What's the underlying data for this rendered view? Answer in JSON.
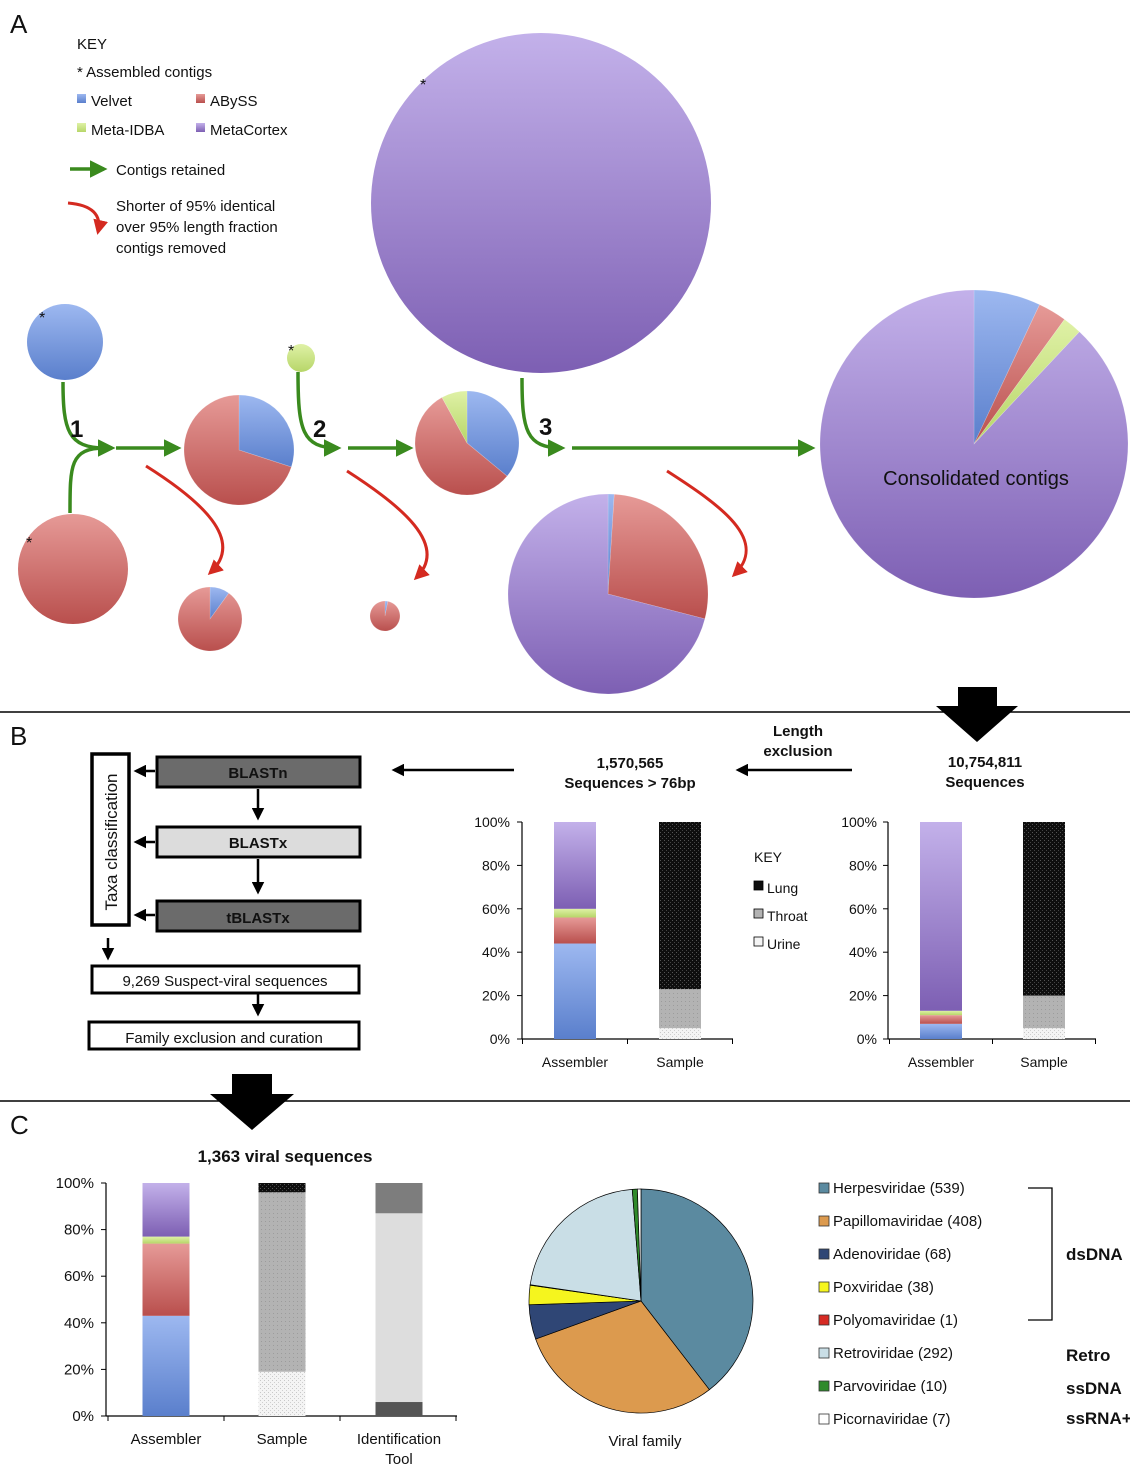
{
  "colors": {
    "velvet": "#6a8fd8",
    "abyss": "#c9605d",
    "metaidba": "#c6e07c",
    "metacortex": "#9478c6",
    "herpes": "#5b8aa0",
    "papilloma": "#dc9a4e",
    "adeno": "#2f4675",
    "pox": "#f5f51e",
    "polyoma": "#d62a23",
    "retro": "#c9dee6",
    "parvo": "#2f8a2b",
    "picorna": "#ffffff",
    "green_arrow": "#3a8a1e",
    "red_arrow": "#d42a20"
  },
  "panelA": {
    "letter": "A",
    "key": {
      "title": "KEY",
      "assembled": "* Assembled contigs",
      "velvet": "Velvet",
      "abyss": "ABySS",
      "metaidba": "Meta-IDBA",
      "metacortex": "MetaCortex",
      "retained": "Contigs retained",
      "removed_1": "Shorter of 95% identical",
      "removed_2": "over 95% length fraction",
      "removed_3": "contigs removed"
    },
    "asterisk": "*",
    "steps": [
      "1",
      "2",
      "3"
    ],
    "consolidated": "Consolidated contigs",
    "pies": [
      {
        "id": "velvet",
        "slices": [
          {
            "k": "velvet",
            "v": 100
          }
        ]
      },
      {
        "id": "abyss",
        "slices": [
          {
            "k": "abyss",
            "v": 100
          }
        ]
      },
      {
        "id": "metaidba",
        "slices": [
          {
            "k": "metaidba",
            "v": 100
          }
        ]
      },
      {
        "id": "metacortex",
        "slices": [
          {
            "k": "metacortex",
            "v": 100
          }
        ]
      },
      {
        "id": "merge1",
        "slices": [
          {
            "k": "velvet",
            "v": 30
          },
          {
            "k": "abyss",
            "v": 70
          }
        ]
      },
      {
        "id": "removed1",
        "slices": [
          {
            "k": "velvet",
            "v": 10
          },
          {
            "k": "abyss",
            "v": 90
          }
        ]
      },
      {
        "id": "merge2",
        "slices": [
          {
            "k": "velvet",
            "v": 36
          },
          {
            "k": "abyss",
            "v": 56
          },
          {
            "k": "metaidba",
            "v": 8
          }
        ]
      },
      {
        "id": "removed2",
        "slices": [
          {
            "k": "velvet",
            "v": 3
          },
          {
            "k": "abyss",
            "v": 97
          }
        ]
      },
      {
        "id": "removed3",
        "slices": [
          {
            "k": "velvet",
            "v": 1
          },
          {
            "k": "abyss",
            "v": 28
          },
          {
            "k": "metacortex",
            "v": 71
          }
        ]
      },
      {
        "id": "consolidated",
        "slices": [
          {
            "k": "velvet",
            "v": 7
          },
          {
            "k": "abyss",
            "v": 3
          },
          {
            "k": "metaidba",
            "v": 2
          },
          {
            "k": "metacortex",
            "v": 88
          }
        ]
      }
    ]
  },
  "panelB": {
    "letter": "B",
    "taxa": "Taxa classification",
    "blastn": "BLASTn",
    "blastx": "BLASTx",
    "tblastx": "tBLASTx",
    "suspect": "9,269 Suspect-viral sequences",
    "family": "Family exclusion and curation",
    "length_1": "Length",
    "length_2": "exclusion",
    "seq76_1": "1,570,565",
    "seq76_2": "Sequences > 76bp",
    "seqall_1": "10,754,811",
    "seqall_2": "Sequences",
    "key": {
      "title": "KEY",
      "lung": "Lung",
      "throat": "Throat",
      "urine": "Urine"
    },
    "chart_data": [
      {
        "type": "bar",
        "categories": [
          "Assembler",
          "Sample"
        ],
        "yticks": [
          "100%",
          "80%",
          "60%",
          "40%",
          "20%",
          "0%"
        ],
        "ylim": [
          0,
          100
        ],
        "series": [
          {
            "name": "Velvet",
            "values": [
              44,
              null
            ]
          },
          {
            "name": "ABySS",
            "values": [
              12,
              null
            ]
          },
          {
            "name": "Meta-IDBA",
            "values": [
              4,
              null
            ]
          },
          {
            "name": "MetaCortex",
            "values": [
              40,
              null
            ]
          },
          {
            "name": "Urine",
            "values": [
              null,
              5
            ]
          },
          {
            "name": "Throat",
            "values": [
              null,
              18
            ]
          },
          {
            "name": "Lung",
            "values": [
              null,
              77
            ]
          }
        ]
      },
      {
        "type": "bar",
        "categories": [
          "Assembler",
          "Sample"
        ],
        "yticks": [
          "100%",
          "80%",
          "60%",
          "40%",
          "20%",
          "0%"
        ],
        "ylim": [
          0,
          100
        ],
        "series": [
          {
            "name": "Velvet",
            "values": [
              7,
              null
            ]
          },
          {
            "name": "ABySS",
            "values": [
              4,
              null
            ]
          },
          {
            "name": "Meta-IDBA",
            "values": [
              2,
              null
            ]
          },
          {
            "name": "MetaCortex",
            "values": [
              87,
              null
            ]
          },
          {
            "name": "Urine",
            "values": [
              null,
              5
            ]
          },
          {
            "name": "Throat",
            "values": [
              null,
              15
            ]
          },
          {
            "name": "Lung",
            "values": [
              null,
              80
            ]
          }
        ]
      }
    ]
  },
  "panelC": {
    "letter": "C",
    "title": "1,363 viral sequences",
    "viral_family": "Viral family",
    "cat_tool_1": "Identification",
    "cat_tool_2": "Tool",
    "groups": {
      "dsdna": "dsDNA",
      "retro": "Retro",
      "ssdna": "ssDNA",
      "ssrna": "ssRNA+"
    },
    "legend": [
      {
        "key": "herpes",
        "label": "Herpesviridae (539)"
      },
      {
        "key": "papilloma",
        "label": "Papillomaviridae (408)"
      },
      {
        "key": "adeno",
        "label": "Adenoviridae (68)"
      },
      {
        "key": "pox",
        "label": "Poxviridae (38)"
      },
      {
        "key": "polyoma",
        "label": "Polyomaviridae (1)"
      },
      {
        "key": "retro",
        "label": "Retroviridae (292)"
      },
      {
        "key": "parvo",
        "label": "Parvoviridae (10)"
      },
      {
        "key": "picorna",
        "label": "Picornaviridae (7)"
      }
    ],
    "chart_data": [
      {
        "type": "bar",
        "categories": [
          "Assembler",
          "Sample",
          "Identification Tool"
        ],
        "yticks": [
          "100%",
          "80%",
          "60%",
          "40%",
          "20%",
          "0%"
        ],
        "ylim": [
          0,
          100
        ],
        "series": [
          {
            "name": "Velvet",
            "values": [
              43,
              null,
              null
            ]
          },
          {
            "name": "ABySS",
            "values": [
              31,
              null,
              null
            ]
          },
          {
            "name": "Meta-IDBA",
            "values": [
              3,
              null,
              null
            ]
          },
          {
            "name": "MetaCortex",
            "values": [
              23,
              null,
              null
            ]
          },
          {
            "name": "Urine",
            "values": [
              null,
              19,
              null
            ]
          },
          {
            "name": "Throat",
            "values": [
              null,
              77,
              null
            ]
          },
          {
            "name": "Lung",
            "values": [
              null,
              4,
              null
            ]
          },
          {
            "name": "BLASTn",
            "values": [
              null,
              null,
              6
            ]
          },
          {
            "name": "BLASTx",
            "values": [
              null,
              null,
              81
            ]
          },
          {
            "name": "tBLASTx",
            "values": [
              null,
              null,
              13
            ]
          }
        ]
      },
      {
        "type": "pie",
        "categories": [
          "Herpesviridae",
          "Papillomaviridae",
          "Adenoviridae",
          "Poxviridae",
          "Polyomaviridae",
          "Retroviridae",
          "Parvoviridae",
          "Picornaviridae"
        ],
        "values": [
          539,
          408,
          68,
          38,
          1,
          292,
          10,
          7
        ]
      }
    ]
  }
}
